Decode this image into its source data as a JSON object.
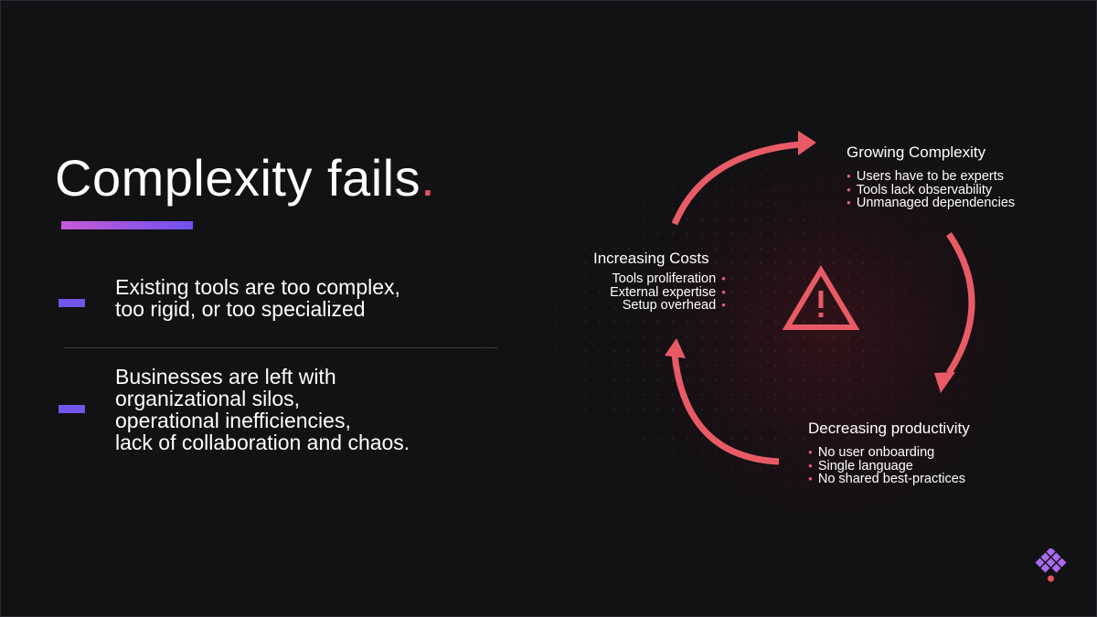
{
  "slide": {
    "title": "Complexity fails",
    "title_punct": ".",
    "bullets": [
      {
        "text": "Existing tools are too complex,\ntoo rigid, or too specialized"
      },
      {
        "text": "Businesses are left with\norganizational silos,\noperational inefficiencies,\nlack of collaboration and chaos."
      }
    ]
  },
  "cycle": {
    "center_icon": "warning-triangle-icon",
    "nodes": {
      "growing": {
        "title": "Growing Complexity",
        "items": [
          "Users have to be experts",
          "Tools lack observability",
          "Unmanaged dependencies"
        ]
      },
      "decreasing": {
        "title": "Decreasing productivity",
        "items": [
          "No user onboarding",
          "Single language",
          "No shared best-practices"
        ]
      },
      "increasing": {
        "title": "Increasing Costs",
        "items": [
          "Tools proliferation",
          "External expertise",
          "Setup overhead"
        ]
      }
    }
  },
  "colors": {
    "accent": "#e8505b",
    "arrow": "#e85b66",
    "bar_start": "#c85ad8",
    "bar_end": "#6e52ee",
    "dash": "#7155ec",
    "background": "#121113"
  },
  "logo": {
    "icon": "brand-diamond-logo-icon"
  }
}
